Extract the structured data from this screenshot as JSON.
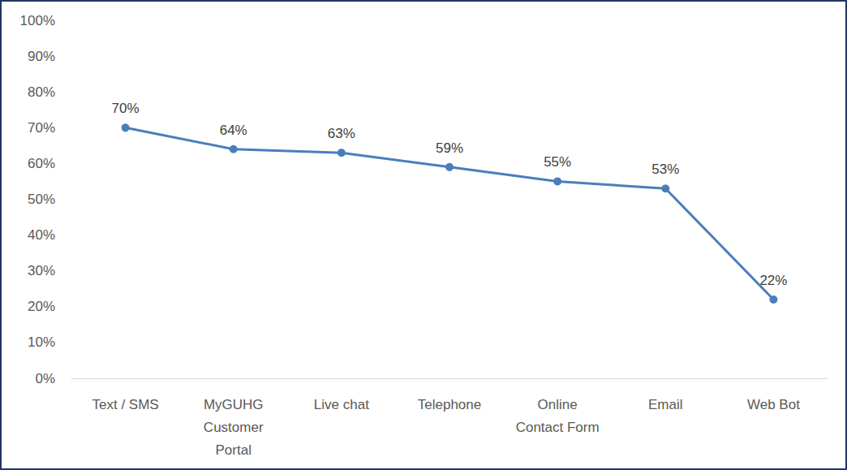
{
  "chart_data": {
    "type": "line",
    "categories": [
      "Text / SMS",
      "MyGUHG\nCustomer\nPortal",
      "Live chat",
      "Telephone",
      "Online\nContact Form",
      "Email",
      "Web Bot"
    ],
    "values": [
      70,
      64,
      63,
      59,
      55,
      53,
      22
    ],
    "value_labels": [
      "70%",
      "64%",
      "63%",
      "59%",
      "55%",
      "53%",
      "22%"
    ],
    "color": "#4a7ebb",
    "marker": "circle",
    "line_style": "solid",
    "data_labels": true,
    "grid": false,
    "ylim": [
      0,
      100
    ],
    "yticks": [
      {
        "value": 0,
        "label": "0%"
      },
      {
        "value": 10,
        "label": "10%"
      },
      {
        "value": 20,
        "label": "20%"
      },
      {
        "value": 30,
        "label": "30%"
      },
      {
        "value": 40,
        "label": "40%"
      },
      {
        "value": 50,
        "label": "50%"
      },
      {
        "value": 60,
        "label": "60%"
      },
      {
        "value": 70,
        "label": "70%"
      },
      {
        "value": 80,
        "label": "80%"
      },
      {
        "value": 90,
        "label": "90%"
      },
      {
        "value": 100,
        "label": "100%"
      }
    ]
  }
}
